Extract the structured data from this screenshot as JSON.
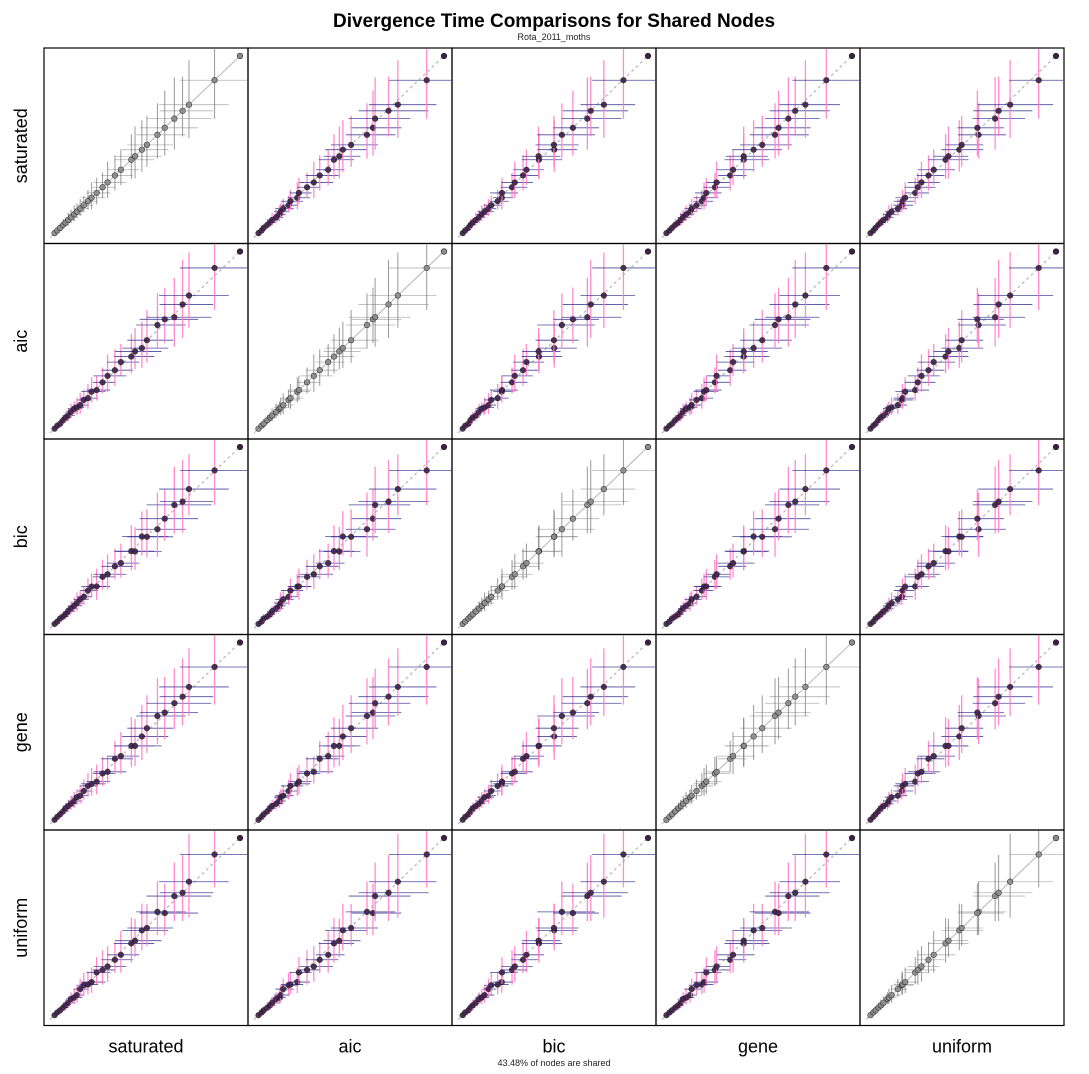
{
  "chart_data": {
    "type": "scatter",
    "title": "Divergence Time Comparisons for Shared Nodes",
    "subtitle": "Rota_2011_moths",
    "footnote": "43.48% of nodes are shared",
    "models": [
      "saturated",
      "aic",
      "bic",
      "gene",
      "uniform"
    ],
    "grid": false,
    "legend": "none",
    "reference_line": "y = x (dotted; solid on diagonal panels)",
    "colors": {
      "point_fill": "#3d1f47",
      "point_fill_diag": "#8c8c8c",
      "row_model_bar": "#ff77c9",
      "col_model_bar": "#2b2b8c",
      "diag_bar": "#777777",
      "reference": "#bfbfbf",
      "frame": "#000000"
    },
    "nodes": [
      {
        "t": 1.0,
        "lo": 0.7,
        "hi": 1.4
      },
      {
        "t": 1.6,
        "lo": 1.1,
        "hi": 2.3
      },
      {
        "t": 2.2,
        "lo": 1.5,
        "hi": 3.1
      },
      {
        "t": 2.9,
        "lo": 2.0,
        "hi": 4.0
      },
      {
        "t": 3.4,
        "lo": 2.4,
        "hi": 4.6
      },
      {
        "t": 4.0,
        "lo": 2.8,
        "hi": 5.4
      },
      {
        "t": 4.6,
        "lo": 3.2,
        "hi": 6.2
      },
      {
        "t": 5.3,
        "lo": 3.7,
        "hi": 7.1
      },
      {
        "t": 5.9,
        "lo": 4.1,
        "hi": 7.9
      },
      {
        "t": 6.6,
        "lo": 4.6,
        "hi": 8.8
      },
      {
        "t": 7.4,
        "lo": 5.2,
        "hi": 9.8
      },
      {
        "t": 8.3,
        "lo": 5.8,
        "hi": 11.0
      },
      {
        "t": 9.1,
        "lo": 6.4,
        "hi": 12.1
      },
      {
        "t": 10.2,
        "lo": 7.1,
        "hi": 13.5
      },
      {
        "t": 11.5,
        "lo": 8.0,
        "hi": 15.2
      },
      {
        "t": 12.6,
        "lo": 8.8,
        "hi": 16.6
      },
      {
        "t": 14.2,
        "lo": 9.9,
        "hi": 18.6
      },
      {
        "t": 15.5,
        "lo": 10.8,
        "hi": 20.3
      },
      {
        "t": 17.8,
        "lo": 12.5,
        "hi": 23.2
      },
      {
        "t": 18.6,
        "lo": 13.0,
        "hi": 24.2
      },
      {
        "t": 20.1,
        "lo": 14.1,
        "hi": 26.1
      },
      {
        "t": 21.2,
        "lo": 15.0,
        "hi": 27.5
      },
      {
        "t": 23.5,
        "lo": 16.5,
        "hi": 30.5
      },
      {
        "t": 25.1,
        "lo": 17.6,
        "hi": 32.6
      },
      {
        "t": 27.2,
        "lo": 19.0,
        "hi": 35.3
      },
      {
        "t": 29.0,
        "lo": 20.3,
        "hi": 37.7
      },
      {
        "t": 30.4,
        "lo": 21.4,
        "hi": 39.5
      },
      {
        "t": 36.0,
        "lo": 25.2,
        "hi": 46.8
      }
    ],
    "xlim": [
      0,
      42
    ],
    "ylim": [
      0,
      42
    ]
  }
}
